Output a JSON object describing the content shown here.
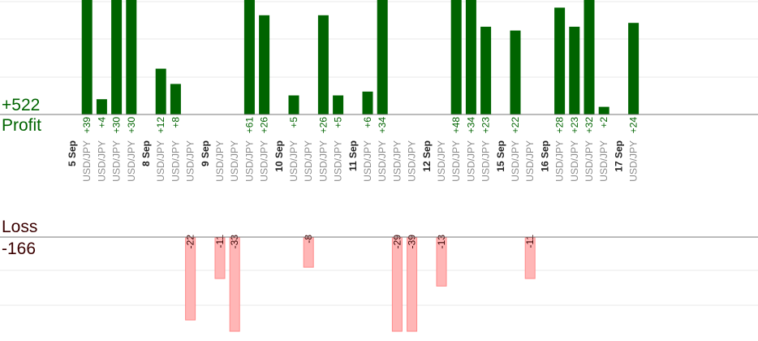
{
  "summary": {
    "profit_total": "+522",
    "profit_label": "Profit",
    "loss_label": "Loss",
    "loss_total": "-166"
  },
  "colors": {
    "profit_bar": "#006400",
    "loss_fill": "#ffb6b6",
    "loss_stroke": "#ff8a8a",
    "profit_text": "#006400",
    "loss_text": "#3a0000",
    "instrument_text": "#8c8c8c",
    "date_text": "#222222",
    "grid": "#e8e8e8",
    "baseline": "#7a7a7a"
  },
  "chart_data": {
    "type": "bar",
    "unit": "pips",
    "profit_scale_max": 30,
    "loss_scale_max": 25,
    "days": [
      {
        "date": "5 Sep",
        "trades": [
          {
            "instrument": "USD/JPY",
            "value": 39
          },
          {
            "instrument": "USD/JPY",
            "value": 4
          },
          {
            "instrument": "USD/JPY",
            "value": 30
          },
          {
            "instrument": "USD/JPY",
            "value": 30
          }
        ]
      },
      {
        "date": "8 Sep",
        "trades": [
          {
            "instrument": "USD/JPY",
            "value": 12
          },
          {
            "instrument": "USD/JPY",
            "value": 8
          },
          {
            "instrument": "USD/JPY",
            "value": -22
          }
        ]
      },
      {
        "date": "9 Sep",
        "trades": [
          {
            "instrument": "USD/JPY",
            "value": -11
          },
          {
            "instrument": "USD/JPY",
            "value": -33
          },
          {
            "instrument": "USD/JPY",
            "value": 61
          },
          {
            "instrument": "USD/JPY",
            "value": 26
          }
        ]
      },
      {
        "date": "10 Sep",
        "trades": [
          {
            "instrument": "USD/JPY",
            "value": 5
          },
          {
            "instrument": "USD/JPY",
            "value": -8
          },
          {
            "instrument": "USD/JPY",
            "value": 26
          },
          {
            "instrument": "USD/JPY",
            "value": 5
          }
        ]
      },
      {
        "date": "11 Sep",
        "trades": [
          {
            "instrument": "USD/JPY",
            "value": 6
          },
          {
            "instrument": "USD/JPY",
            "value": 34
          },
          {
            "instrument": "USD/JPY",
            "value": -29
          },
          {
            "instrument": "USD/JPY",
            "value": -39
          }
        ]
      },
      {
        "date": "12 Sep",
        "trades": [
          {
            "instrument": "USD/JPY",
            "value": -13
          },
          {
            "instrument": "USD/JPY",
            "value": 48
          },
          {
            "instrument": "USD/JPY",
            "value": 34
          },
          {
            "instrument": "USD/JPY",
            "value": 23
          }
        ]
      },
      {
        "date": "15 Sep",
        "trades": [
          {
            "instrument": "USD/JPY",
            "value": 22
          },
          {
            "instrument": "USD/JPY",
            "value": -11
          }
        ]
      },
      {
        "date": "16 Sep",
        "trades": [
          {
            "instrument": "USD/JPY",
            "value": 28
          },
          {
            "instrument": "USD/JPY",
            "value": 23
          },
          {
            "instrument": "USD/JPY",
            "value": 32
          },
          {
            "instrument": "USD/JPY",
            "value": 2
          }
        ]
      },
      {
        "date": "17 Sep",
        "trades": [
          {
            "instrument": "USD/JPY",
            "value": 24
          }
        ]
      }
    ]
  }
}
